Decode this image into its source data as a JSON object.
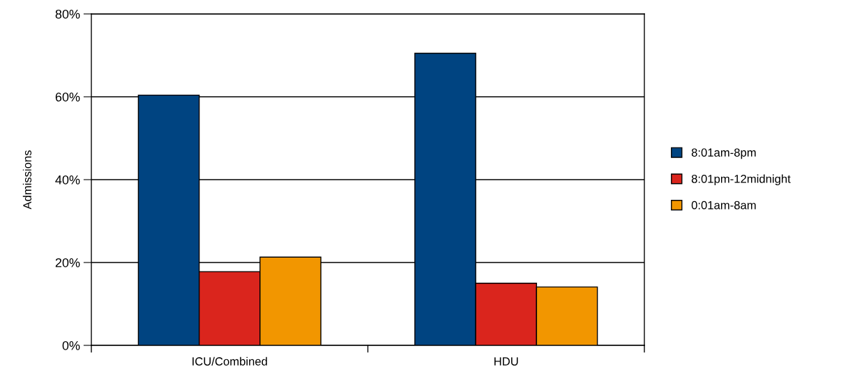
{
  "chart_data": {
    "type": "bar",
    "ylabel": "Admissions",
    "categories": [
      "ICU/Combined",
      "HDU"
    ],
    "series": [
      {
        "name": "8:01am-8pm",
        "color": "#004481",
        "values": [
          60.4,
          70.5
        ]
      },
      {
        "name": "8:01pm-12midnight",
        "color": "#da251d",
        "values": [
          17.8,
          15.0
        ]
      },
      {
        "name": "0:01am-8am",
        "color": "#f29600",
        "values": [
          21.3,
          14.1
        ]
      }
    ],
    "ylim": [
      0,
      80
    ],
    "yticks": [
      {
        "value": 0,
        "label": "0%"
      },
      {
        "value": 20,
        "label": "20%"
      },
      {
        "value": 40,
        "label": "40%"
      },
      {
        "value": 60,
        "label": "60%"
      },
      {
        "value": 80,
        "label": "80%"
      }
    ],
    "grid": "y",
    "legend": "right"
  }
}
